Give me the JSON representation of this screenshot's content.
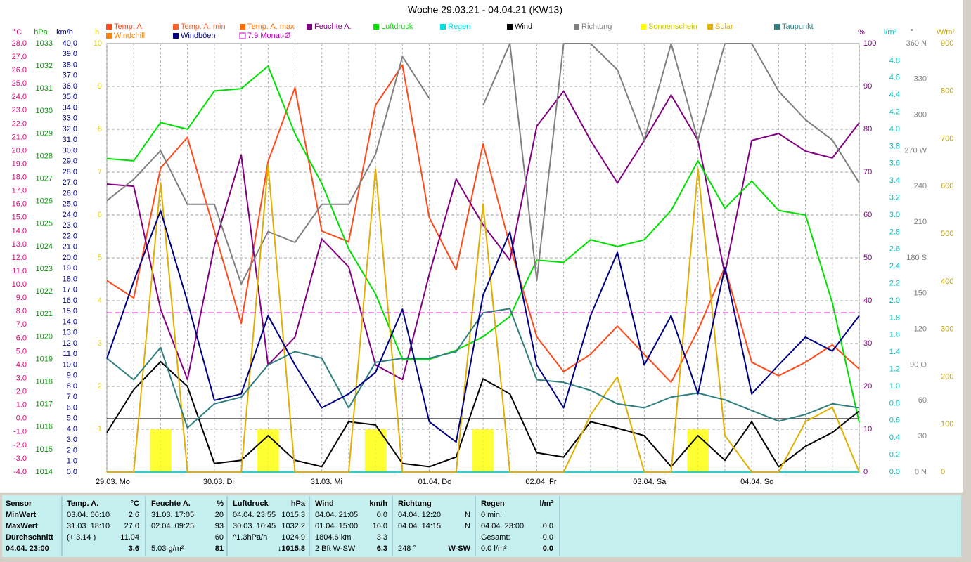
{
  "chart_data": {
    "type": "multi-axis-line",
    "title": "Woche 29.03.21 - 04.04.21 (KW13)",
    "days": [
      "29.03. Mo",
      "30.03. Di",
      "31.03. Mi",
      "01.04. Do",
      "02.04. Fr",
      "03.04. Sa",
      "04.04. So"
    ],
    "grid": true,
    "axes": [
      {
        "unit": "°C",
        "color": "#e6007e",
        "lim": [
          -4,
          28
        ],
        "ticks": [
          {
            "value": -4,
            "label": "-4.0"
          },
          {
            "value": -3,
            "label": "-3.0"
          },
          {
            "value": -2,
            "label": "-2.0"
          },
          {
            "value": -1,
            "label": "-1.0"
          },
          {
            "value": 0,
            "label": "0.0"
          },
          {
            "value": 1,
            "label": "1.0"
          },
          {
            "value": 2,
            "label": "2.0"
          },
          {
            "value": 3,
            "label": "3.0"
          },
          {
            "value": 4,
            "label": "4.0"
          },
          {
            "value": 5,
            "label": "5.0"
          },
          {
            "value": 6,
            "label": "6.0"
          },
          {
            "value": 7,
            "label": "7.0"
          },
          {
            "value": 8,
            "label": "8.0"
          },
          {
            "value": 9,
            "label": "9.0"
          },
          {
            "value": 10,
            "label": "10.0"
          },
          {
            "value": 11,
            "label": "11.0"
          },
          {
            "value": 12,
            "label": "12.0"
          },
          {
            "value": 13,
            "label": "13.0"
          },
          {
            "value": 14,
            "label": "14.0"
          },
          {
            "value": 15,
            "label": "15.0"
          },
          {
            "value": 16,
            "label": "16.0"
          },
          {
            "value": 17,
            "label": "17.0"
          },
          {
            "value": 18,
            "label": "18.0"
          },
          {
            "value": 19,
            "label": "19.0"
          },
          {
            "value": 20,
            "label": "20.0"
          },
          {
            "value": 21,
            "label": "21.0"
          },
          {
            "value": 22,
            "label": "22.0"
          },
          {
            "value": 23,
            "label": "23.0"
          },
          {
            "value": 24,
            "label": "24.0"
          },
          {
            "value": 25,
            "label": "25.0"
          },
          {
            "value": 26,
            "label": "26.0"
          },
          {
            "value": 27,
            "label": "27.0"
          },
          {
            "value": 28,
            "label": "28.0"
          }
        ]
      },
      {
        "unit": "hPa",
        "color": "#00a000",
        "lim": [
          1014,
          1033
        ],
        "ticks": [
          1014,
          1015,
          1016,
          1017,
          1018,
          1019,
          1020,
          1021,
          1022,
          1023,
          1024,
          1025,
          1026,
          1027,
          1028,
          1029,
          1030,
          1031,
          1032,
          1033
        ]
      },
      {
        "unit": "km/h",
        "color": "#000080",
        "lim": [
          0,
          40
        ],
        "ticks": [
          {
            "value": 0,
            "label": "0.0"
          },
          {
            "value": 1,
            "label": "1.0"
          },
          {
            "value": 2,
            "label": "2.0"
          },
          {
            "value": 3,
            "label": "3.0"
          },
          {
            "value": 4,
            "label": "4.0"
          },
          {
            "value": 5,
            "label": "5.0"
          },
          {
            "value": 6,
            "label": "6.0"
          },
          {
            "value": 7,
            "label": "7.0"
          },
          {
            "value": 8,
            "label": "8.0"
          },
          {
            "value": 9,
            "label": "9.0"
          },
          {
            "value": 10,
            "label": "10.0"
          },
          {
            "value": 11,
            "label": "11.0"
          },
          {
            "value": 12,
            "label": "12.0"
          },
          {
            "value": 13,
            "label": "13.0"
          },
          {
            "value": 14,
            "label": "14.0"
          },
          {
            "value": 15,
            "label": "15.0"
          },
          {
            "value": 16,
            "label": "16.0"
          },
          {
            "value": 17,
            "label": "17.0"
          },
          {
            "value": 18,
            "label": "18.0"
          },
          {
            "value": 19,
            "label": "19.0"
          },
          {
            "value": 20,
            "label": "20.0"
          },
          {
            "value": 21,
            "label": "21.0"
          },
          {
            "value": 22,
            "label": "22.0"
          },
          {
            "value": 23,
            "label": "23.0"
          },
          {
            "value": 24,
            "label": "24.0"
          },
          {
            "value": 25,
            "label": "25.0"
          },
          {
            "value": 26,
            "label": "26.0"
          },
          {
            "value": 27,
            "label": "27.0"
          },
          {
            "value": 28,
            "label": "28.0"
          },
          {
            "value": 29,
            "label": "29.0"
          },
          {
            "value": 30,
            "label": "30.0"
          },
          {
            "value": 31,
            "label": "31.0"
          },
          {
            "value": 32,
            "label": "32.0"
          },
          {
            "value": 33,
            "label": "33.0"
          },
          {
            "value": 34,
            "label": "34.0"
          },
          {
            "value": 35,
            "label": "35.0"
          },
          {
            "value": 36,
            "label": "36.0"
          },
          {
            "value": 37,
            "label": "37.0"
          },
          {
            "value": 38,
            "label": "38.0"
          },
          {
            "value": 39,
            "label": "39.0"
          },
          {
            "value": 40,
            "label": "40.0"
          }
        ]
      },
      {
        "unit": "h",
        "color": "#e0d000",
        "lim": [
          0,
          10
        ],
        "ticks": [
          1,
          2,
          3,
          4,
          5,
          6,
          7,
          8,
          9,
          10
        ]
      },
      {
        "unit": "%",
        "color": "#800080",
        "lim": [
          0,
          100
        ],
        "ticks": [
          0,
          10,
          20,
          30,
          40,
          50,
          60,
          70,
          80,
          90,
          100
        ]
      },
      {
        "unit": "l/m²",
        "color": "#00c0c0",
        "lim": [
          0,
          5
        ],
        "ticks": [
          {
            "value": 0,
            "label": "0.0"
          },
          0.2,
          0.4,
          0.6,
          0.8,
          {
            "value": 1,
            "label": "1.0"
          },
          1.2,
          1.4,
          1.6,
          1.8,
          {
            "value": 2,
            "label": "2.0"
          },
          2.2,
          2.4,
          2.6,
          2.8,
          {
            "value": 3,
            "label": "3.0"
          },
          3.2,
          3.4,
          3.6,
          3.8,
          {
            "value": 4,
            "label": "4.0"
          },
          4.2,
          4.4,
          4.6,
          4.8
        ]
      },
      {
        "unit": "°",
        "color": "#808080",
        "lim": [
          0,
          360
        ],
        "ticks": [
          {
            "value": 0,
            "label": "0 N"
          },
          30,
          60,
          {
            "value": 90,
            "label": "90 O"
          },
          120,
          150,
          {
            "value": 180,
            "label": "180 S"
          },
          210,
          240,
          {
            "value": 270,
            "label": "270 W"
          },
          300,
          330,
          {
            "value": 360,
            "label": "360 N"
          }
        ]
      },
      {
        "unit": "W/m²",
        "color": "#c0a000",
        "lim": [
          0,
          900
        ],
        "ticks": [
          0,
          100,
          200,
          300,
          400,
          500,
          600,
          700,
          800,
          900
        ]
      }
    ],
    "series": [
      {
        "name": "Temp. A.",
        "color": "#ff4a1c",
        "type": "line",
        "axis": 0,
        "values": [
          10.3,
          9.0,
          18.7,
          21.0,
          14.0,
          7.1,
          19.2,
          24.7,
          14.0,
          13.2,
          23.4,
          26.4,
          15.0,
          11.1,
          20.5,
          12.9,
          6.1,
          3.5,
          4.8,
          6.9,
          4.8,
          2.7,
          6.6,
          11.3,
          4.2,
          3.2,
          4.2,
          5.5,
          3.7
        ]
      },
      {
        "name": "Temp. A. min",
        "color": "#ff6030"
      },
      {
        "name": "Temp. A. max",
        "color": "#ff7000"
      },
      {
        "name": "Feuchte A.",
        "color": "#800080",
        "type": "line",
        "axis": 4,
        "values": [
          67.2,
          66.7,
          38,
          21.6,
          52.8,
          74,
          25,
          31.5,
          54.4,
          47.9,
          25,
          21.6,
          46.2,
          68.4,
          57.7,
          49.5,
          80.7,
          88.9,
          77.4,
          67.5,
          77.4,
          88,
          77.4,
          46.2,
          77.4,
          79,
          74.9,
          73.3,
          81.5
        ]
      },
      {
        "name": "Luftdruck",
        "color": "#00e000",
        "type": "line",
        "axis": 1,
        "values": [
          1027.9,
          1027.8,
          1029.5,
          1029.2,
          1030.9,
          1031.0,
          1032.0,
          1029.0,
          1026.8,
          1023.9,
          1021.9,
          1019.0,
          1019.0,
          1019.4,
          1020.0,
          1020.9,
          1023.4,
          1023.3,
          1024.3,
          1024.0,
          1024.3,
          1025.6,
          1027.8,
          1025.7,
          1026.9,
          1025.6,
          1025.4,
          1021.5,
          1016.2
        ]
      },
      {
        "name": "Regen",
        "color": "#00e0e0",
        "type": "line",
        "axis": 5,
        "values": [
          0,
          0,
          0,
          0,
          0,
          0,
          0,
          0,
          0,
          0,
          0,
          0,
          0,
          0,
          0,
          0,
          0,
          0,
          0,
          0,
          0,
          0,
          0,
          0,
          0,
          0,
          0,
          0,
          0
        ]
      },
      {
        "name": "Wind",
        "color": "#000000",
        "type": "line",
        "axis": 2,
        "values": [
          3.7,
          7.7,
          10.3,
          8.0,
          0.8,
          1.1,
          3.4,
          1.1,
          0.5,
          4.7,
          4.4,
          0.8,
          0.5,
          1.4,
          8.7,
          7.3,
          1.8,
          1.4,
          4.7,
          4.1,
          3.4,
          0.5,
          3.4,
          1.1,
          4.7,
          0.5,
          2.4,
          3.7,
          5.7
        ]
      },
      {
        "name": "Richtung",
        "color": "#808080",
        "type": "line",
        "axis": 6,
        "values": [
          228,
          246,
          270,
          225,
          225,
          158,
          202,
          193,
          225,
          225,
          267,
          349,
          314,
          null,
          308,
          360,
          161,
          360,
          360,
          338,
          279,
          360,
          279,
          360,
          360,
          320,
          296,
          279,
          243
        ]
      },
      {
        "name": "Sonnenschein",
        "color": "#ffff00",
        "type": "bar",
        "axis": 3,
        "values": [
          0,
          0,
          1,
          0,
          0,
          0,
          1,
          0,
          0,
          0,
          1,
          0,
          0,
          0,
          1,
          0,
          0,
          0,
          0,
          0,
          0,
          0,
          1,
          0,
          0,
          0,
          0,
          0,
          0
        ]
      },
      {
        "name": "Solar",
        "color": "#e0b000",
        "type": "line",
        "axis": 7,
        "values": [
          0,
          0,
          608,
          0,
          0,
          0,
          645,
          0,
          0,
          0,
          637,
          0,
          0,
          0,
          563,
          0,
          0,
          0,
          120,
          200,
          0,
          0,
          637,
          77,
          0,
          0,
          106,
          136,
          0
        ]
      },
      {
        "name": "Taupunkt",
        "color": "#2f7f7f",
        "type": "line",
        "axis": 0,
        "values": [
          4.5,
          2.9,
          5.3,
          -0.7,
          1.1,
          1.6,
          4.0,
          5.0,
          4.5,
          0.8,
          4.2,
          4.5,
          4.5,
          5.0,
          7.9,
          8.2,
          2.9,
          2.7,
          2.1,
          1.1,
          0.8,
          1.6,
          1.9,
          1.4,
          0.6,
          -0.2,
          0.3,
          1.1,
          0.8
        ]
      },
      {
        "name": "Windchill",
        "color": "#ff8000"
      },
      {
        "name": "Windböen",
        "color": "#000080",
        "type": "line",
        "axis": 2,
        "values": [
          10.6,
          17.8,
          24.4,
          15.9,
          6.7,
          7.3,
          14.6,
          10.0,
          6.0,
          7.3,
          9.3,
          15.2,
          4.7,
          2.8,
          16.5,
          22.4,
          10.0,
          6.0,
          14.6,
          20.5,
          10.0,
          14.6,
          7.3,
          19.1,
          7.3,
          10.0,
          12.6,
          11.3,
          14.6
        ]
      },
      {
        "name": "7.9 Monat-Ø",
        "color": "#c000c0",
        "type": "hline",
        "axis": 0,
        "value": 7.9
      }
    ],
    "stats": {
      "row_labels": [
        "Sensor",
        "MinWert",
        "MaxWert",
        "Durchschnitt",
        "04.04. 23:00"
      ],
      "columns": [
        {
          "title": "Temp. A.",
          "unit": "°C",
          "cells": [
            [
              "03.04. 06:10",
              "2.6"
            ],
            [
              "31.03. 18:10",
              "27.0"
            ],
            [
              "(+ 3.14 )",
              "11.04"
            ],
            [
              null,
              "3.6"
            ]
          ]
        },
        {
          "title": "Feuchte A.",
          "unit": "%",
          "cells": [
            [
              "31.03. 17:05",
              "20"
            ],
            [
              "02.04. 09:25",
              "93"
            ],
            [
              null,
              "60"
            ],
            [
              "5.03 g/m²",
              "81"
            ]
          ]
        },
        {
          "title": "Luftdruck",
          "unit": "hPa",
          "cells": [
            [
              "04.04. 23:55",
              "1015.3"
            ],
            [
              "30.03. 10:45",
              "1032.2"
            ],
            [
              "^1.3hPa/h",
              "1024.9"
            ],
            [
              null,
              "↓1015.8"
            ]
          ]
        },
        {
          "title": "Wind",
          "unit": "km/h",
          "cells": [
            [
              "04.04. 21:05",
              "0.0"
            ],
            [
              "01.04. 15:00",
              "16.0"
            ],
            [
              "1804.6 km",
              "3.3"
            ],
            [
              "2 Bft W-SW",
              "6.3"
            ]
          ]
        },
        {
          "title": "Richtung",
          "unit": null,
          "cells": [
            [
              "04.04. 12:20",
              "N"
            ],
            [
              "04.04. 14:15",
              "N"
            ],
            [
              null,
              null
            ],
            [
              "248 °",
              "W-SW"
            ]
          ]
        },
        {
          "title": "Regen",
          "unit": "l/m²",
          "cells": [
            [
              "0 min.",
              null
            ],
            [
              "04.04. 23:00",
              "0.0"
            ],
            [
              "Gesamt:",
              "0.0"
            ],
            [
              "0.0 l/m²",
              "0.0"
            ]
          ]
        }
      ]
    }
  }
}
